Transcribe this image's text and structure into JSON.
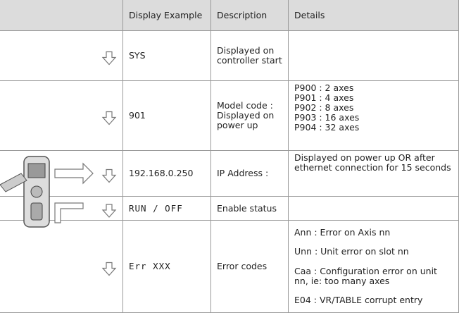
{
  "table": {
    "header": [
      "Display Example",
      "Description",
      "Details"
    ],
    "rows": [
      {
        "display": "SYS",
        "description": "Displayed on controller start"
      },
      {
        "display": "901",
        "description": "Model code : Displayed on power up",
        "details": [
          "P900 : 2 axes",
          "P901 : 4 axes",
          "P902 : 8 axes",
          "P903 : 16 axes",
          "P904 : 32 axes"
        ]
      },
      {
        "display": "192.168.0.250",
        "description": "IP Address :",
        "details": [
          "Displayed on power up OR after ethernet connection for 15 seconds"
        ]
      },
      {
        "display": "RUN / OFF",
        "description": "Enable status"
      },
      {
        "display": "Err XXX",
        "description": "Error codes",
        "details": [
          "Ann : Error on Axis nn",
          "Unn : Unit error on slot nn",
          "Caa : Configuration error on unit nn, ie: too many axes",
          "E04 : VR/TABLE corrupt entry"
        ]
      }
    ]
  }
}
